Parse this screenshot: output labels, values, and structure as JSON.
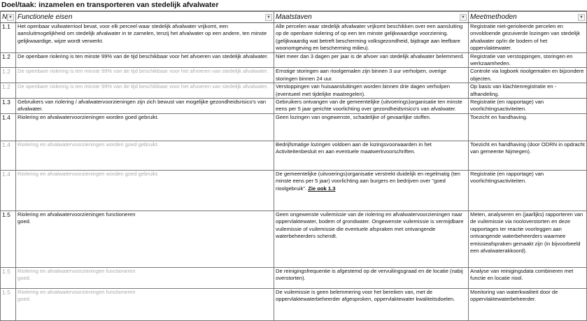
{
  "title": "Doel/taak: inzamelen en transporteren van stedelijk afvalwater",
  "columns": [
    {
      "label": "Nr"
    },
    {
      "label": "Functionele eisen"
    },
    {
      "label": "Maatstaven"
    },
    {
      "label": "Meetmethoden"
    }
  ],
  "rows": [
    {
      "nr": "1.1",
      "eis": "Het openbaar vuilwaterriool bevat, voor elk perceel waar stedelijk afvalwater vrijkomt, een aansluitmogelijkheid om stedelijk afvalwater in te zamelen, tenzij het afvalwater op een andere, ten minste gelijkwaardige, wijze wordt verwerkt.",
      "maatstaf": "Alle percelen waar stedelijk afvalwater vrijkomt beschikken over een aansluiting op de openbare riolering of op een ten minste gelijkwaardige voorziening. (gelijkwaardig wat betreft bescherming volksgezondheid, bijdrage aan leefbare woonomgeving en bescherming milieu).",
      "meetmethode": "Registratie niet-gerioleerde percelen en onvoldoende gezuiverde lozingen van stedelijk afvalwater op/in de bodem of het oppervlaktewater.",
      "repeat": false
    },
    {
      "nr": "1.2",
      "eis": "De openbare riolering is ten minste 99% van de tijd beschikbaar voor het afvoeren van stedelijk afvalwater.",
      "maatstaf": "Niet meer dan 3 dagen per jaar is de afvoer van stedelijk afvalwater belemmerd.",
      "meetmethode": "Registratie van verstoppingen, storingen en werkzaamheden.",
      "repeat": false
    },
    {
      "nr": "1.2",
      "eis": "De openbare riolering is ten minste 99% van de tijd beschikbaar voor het afvoeren van stedelijk afvalwater.",
      "maatstaf": "Ernstige storingen aan rioolgemalen zijn binnen 3 uur verholpen, overige storingen binnen 24 uur.",
      "meetmethode": "Controle via logboek rioolgemalen en bijzondere objecten.",
      "repeat": true
    },
    {
      "nr": "1.2",
      "eis": "De openbare riolering is ten minste 99% van de tijd beschikbaar voor het afvoeren van stedelijk afvalwater.",
      "maatstaf": "Verstoppingen van huisaansluitingen worden binnen drie dagen verholpen (eventueel met tijdelijke maatregelen).",
      "meetmethode": "Op basis van klachtenregistratie en -afhandeling.",
      "repeat": true
    },
    {
      "nr": "1.3",
      "eis": "Gebruikers van riolering / afvalwatervoorzieningen zijn zich bewust van mogelijke gezondheidsrisico's van afvalwater.",
      "maatstaf": "Gebruikers ontvangen van de gemeentelijke (uitvoerings)organisatie ten minste eens per 5 jaar gerichte voorlichting over gezondheidsrisico's van afvalwater.",
      "meetmethode": "Registratie (en rapportage) van voorlichtingsactiviteiten.",
      "repeat": false
    },
    {
      "nr": "1.4",
      "eis": "Riolering en afvalwatervoorzieningen worden goed gebruikt.",
      "maatstaf": "Geen lozingen van ongewenste, schadelijke of gevaarlijke stoffen.",
      "meetmethode": "Toezicht en handhaving.",
      "repeat": false
    },
    {
      "nr": "1.4",
      "eis": "Riolering en afvalwatervoorzieningen worden goed gebruikt.",
      "maatstaf": "Bedrijfsmatige lozingen voldoen aan de lozingsvoorwaarden in het Activiteitenbesluit en aan eventuele maatwerkvoorschriften.",
      "meetmethode": "Toezicht en handhaving (door ODRN in opdracht van gemeente Nijmegen).",
      "repeat": true
    },
    {
      "nr": "1.4",
      "eis": "Riolering en afvalwatervoorzieningen worden goed gebruikt.",
      "maatstaf": "De gemeentelijke (uitvoerings)organisatie verstrekt duidelijk en regelmatig (ten minste eens per 5 jaar) voorlichting aan burgers en bedrijven over \"goed rioolgebruik\".",
      "maatstaf_link": "Zie ook 1.3",
      "meetmethode": "Registratie (en rapportage) van voorlichtingsactiviteiten.",
      "repeat": true
    },
    {
      "nr": "1.5",
      "eis": "Riolering en afvalwatervoorzieningen functioneren\ngoed.",
      "maatstaf": "Geen ongewenste vuilemissie van de riolering en afvalwatervoorzieningen naar oppervlaktewater, bodem of grondwater. Ongewenste vuilemissie is vermijdbare vuilemissie of vuilemissie die eventuele afspraken met ontvangende waterbeheerders schendt.",
      "meetmethode": "Meten, analyseren en (jaarlijks) rapporteren van de vuilemissie via riooloverstorten en deze rapportages ter reactie voorleggen aan ontvangende waterbeheerders waarmee emissieafspraken gemaakt zijn (in bijvoorbeeld een afvalwaterakkoord).",
      "repeat": false
    },
    {
      "nr": "1.5",
      "eis": "Riolering en afvalwatervoorzieningen functioneren\ngoed.",
      "maatstaf": "De reinigingsfrequentie is afgestemd op de vervuilingsgraad en de locatie (nabij overstorten).",
      "meetmethode": "Analyse van reinigingsdata combineren met functie en locatie riool.",
      "repeat": true
    },
    {
      "nr": "1.5",
      "eis": "Riolering en afvalwatervoorzieningen functioneren\ngoed.",
      "maatstaf": "De vuilemissie is geen belemmering voor het bereiken van, met de oppervlaktewaterbeheerder afgesproken, oppervlaktewater kwaliteitsdoelen.",
      "meetmethode": "Monitoring van waterkwaliteit door de oppervlaktewaterbeheerder.",
      "repeat": true
    }
  ],
  "icons": {
    "filter": "dropdown-arrow-icon"
  }
}
